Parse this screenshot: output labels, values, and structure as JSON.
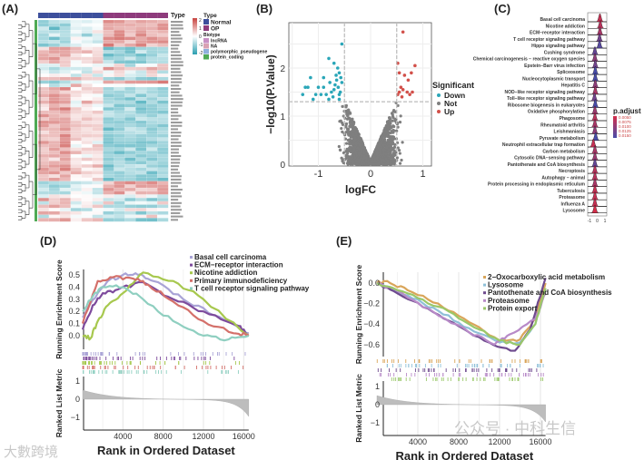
{
  "panels": {
    "a": "(A)",
    "b": "(B)",
    "c": "(C)",
    "d": "(D)",
    "e": "(E)"
  },
  "watermarks": {
    "left": "大數跨境",
    "right": "公众号 · 中科生信"
  },
  "colors": {
    "normal": "#3d4f9c",
    "op": "#8e3b7c",
    "down": "#2aa6b8",
    "not": "#7f7f7f",
    "up": "#d2504a",
    "heat_high": "#c8433f",
    "heat_mid": "#ffffff",
    "heat_low": "#2a9fb0"
  },
  "chart_data": [
    {
      "type": "heatmap",
      "panel": "A",
      "legend": {
        "type_title": "Type",
        "scale_title": "Type",
        "scale_ticks": [
          "2",
          "1",
          "0",
          "-1",
          "-2"
        ],
        "type_items": [
          {
            "label": "Normal",
            "color": "#3d4f9c"
          },
          {
            "label": "OP",
            "color": "#8e3b7c"
          }
        ],
        "biotype_title": "Biotype",
        "biotype_items": [
          {
            "label": "lncRNA",
            "color": "#c78fc4"
          },
          {
            "label": "NA",
            "color": "#d9a1b4"
          },
          {
            "label": "polymorphic_pseudogene",
            "color": "#8fb0dc"
          },
          {
            "label": "protein_coding",
            "color": "#4faa55"
          }
        ]
      },
      "columns": [
        "Normal",
        "Normal",
        "Normal",
        "Normal",
        "Normal",
        "Normal",
        "OP",
        "OP",
        "OP",
        "OP",
        "OP",
        "OP"
      ],
      "row_pattern": [
        1,
        1,
        1,
        1,
        1,
        1,
        1,
        1,
        -1,
        -1,
        -1,
        -1,
        -1,
        0,
        1,
        0,
        0,
        -1,
        1,
        0,
        -1,
        -1,
        -1,
        -1,
        -1,
        -1,
        -1,
        -1,
        -1,
        -1,
        -1,
        -1,
        -1,
        -1,
        -1,
        -1,
        -1,
        -1,
        -1,
        -1,
        -1,
        -1,
        -1,
        -1,
        -1,
        -1,
        -1,
        -1,
        1,
        1,
        1,
        1,
        0,
        -1,
        0,
        -1,
        0,
        -1,
        0,
        -1
      ]
    },
    {
      "type": "scatter",
      "panel": "B",
      "xlabel": "logFC",
      "ylabel": "−log10(P.Value)",
      "xlim": [
        -1.75,
        1.25
      ],
      "ylim": [
        0,
        2.9
      ],
      "xticks": [
        "-1",
        "0",
        "1"
      ],
      "yticks": [
        "0",
        "1",
        "2"
      ],
      "thresholds": {
        "logFC": [
          -0.5,
          0.5
        ],
        "neglog10p": 1.3
      },
      "legend_title": "Significant",
      "legend": [
        "Down",
        "Not",
        "Up"
      ],
      "n_not_points": 2600,
      "down_points": [
        [
          -0.55,
          2.5
        ],
        [
          -0.6,
          1.9
        ],
        [
          -0.7,
          2.1
        ],
        [
          -0.8,
          2.2
        ],
        [
          -0.65,
          1.75
        ],
        [
          -0.9,
          1.8
        ],
        [
          -1.0,
          1.6
        ],
        [
          -1.2,
          1.6
        ],
        [
          -1.25,
          1.6
        ],
        [
          -1.15,
          1.8
        ],
        [
          -0.75,
          1.5
        ],
        [
          -0.85,
          1.45
        ],
        [
          -0.95,
          1.45
        ],
        [
          -1.05,
          1.45
        ],
        [
          -0.6,
          1.35
        ],
        [
          -0.58,
          1.5
        ],
        [
          -0.62,
          1.6
        ],
        [
          -0.68,
          1.65
        ],
        [
          -0.72,
          1.4
        ],
        [
          -1.1,
          1.35
        ],
        [
          -0.8,
          1.35
        ],
        [
          -0.57,
          1.8
        ],
        [
          -0.63,
          2.0
        ],
        [
          -0.7,
          1.55
        ],
        [
          -0.9,
          1.6
        ],
        [
          -1.3,
          1.45
        ],
        [
          -0.6,
          1.45
        ],
        [
          -0.66,
          1.85
        ],
        [
          -0.55,
          1.7
        ],
        [
          -0.78,
          1.7
        ]
      ],
      "up_points": [
        [
          0.62,
          2.75
        ],
        [
          0.52,
          2.1
        ],
        [
          0.55,
          1.9
        ],
        [
          0.65,
          1.85
        ],
        [
          0.78,
          1.9
        ],
        [
          0.85,
          2.05
        ],
        [
          0.72,
          1.75
        ],
        [
          0.58,
          1.6
        ],
        [
          0.62,
          1.55
        ],
        [
          0.55,
          1.5
        ],
        [
          0.7,
          1.5
        ],
        [
          0.8,
          1.5
        ],
        [
          0.75,
          1.45
        ],
        [
          0.52,
          1.45
        ],
        [
          0.6,
          1.4
        ]
      ]
    },
    {
      "type": "ridge",
      "panel": "C",
      "xticks": [
        "-1",
        "0",
        "1"
      ],
      "legend_title": "p.adjust",
      "legend_ticks": [
        "0.0050",
        "0.0075",
        "0.0100",
        "0.0125",
        "0.0150"
      ],
      "pathways": [
        {
          "name": "Basal cell carcinoma",
          "peak": 0.35,
          "padj": 0.006
        },
        {
          "name": "Nicotine addiction",
          "peak": 0.4,
          "padj": 0.007
        },
        {
          "name": "ECM−receptor interaction",
          "peak": 0.35,
          "padj": 0.008
        },
        {
          "name": "T cell receptor signaling pathway",
          "peak": 0.3,
          "padj": 0.012
        },
        {
          "name": "Hippo signaling pathway",
          "peak": 0.3,
          "padj": 0.014
        },
        {
          "name": "Cushing syndrome",
          "peak": -0.3,
          "padj": 0.013
        },
        {
          "name": "Chemical carcinogenesis − reactive oxygen species",
          "peak": -0.3,
          "padj": 0.01
        },
        {
          "name": "Epstein−Barr virus infection",
          "peak": -0.25,
          "padj": 0.012
        },
        {
          "name": "Spliceosome",
          "peak": -0.25,
          "padj": 0.015
        },
        {
          "name": "Nucleocytoplasmic transport",
          "peak": -0.25,
          "padj": 0.015
        },
        {
          "name": "Hepatitis C",
          "peak": -0.25,
          "padj": 0.01
        },
        {
          "name": "NOD−like receptor signaling pathway",
          "peak": -0.25,
          "padj": 0.008
        },
        {
          "name": "Toll−like receptor signaling pathway",
          "peak": -0.35,
          "padj": 0.012
        },
        {
          "name": "Ribosome biogenesis in eukaryotes",
          "peak": -0.25,
          "padj": 0.015
        },
        {
          "name": "Oxidative phosphorylation",
          "peak": -0.3,
          "padj": 0.009
        },
        {
          "name": "Phagosome",
          "peak": -0.3,
          "padj": 0.007
        },
        {
          "name": "Rheumatoid arthritis",
          "peak": -0.3,
          "padj": 0.008
        },
        {
          "name": "Leishmaniasis",
          "peak": -0.3,
          "padj": 0.01
        },
        {
          "name": "Pyruvate metabolism",
          "peak": -0.2,
          "padj": 0.015
        },
        {
          "name": "Neutrophil extracellular trap formation",
          "peak": -0.5,
          "padj": 0.006
        },
        {
          "name": "Carbon metabolism",
          "peak": -0.3,
          "padj": 0.008
        },
        {
          "name": "Cytosolic DNA−sensing pathway",
          "peak": -0.3,
          "padj": 0.009
        },
        {
          "name": "Pantothenate and CoA biosynthesis",
          "peak": -0.3,
          "padj": 0.013
        },
        {
          "name": "Necroptosis",
          "peak": -0.3,
          "padj": 0.007
        },
        {
          "name": "Autophagy − animal",
          "peak": -0.3,
          "padj": 0.007
        },
        {
          "name": "Protein processing in endoplasmic reticulum",
          "peak": -0.3,
          "padj": 0.008
        },
        {
          "name": "Tuberculosis",
          "peak": -0.3,
          "padj": 0.006
        },
        {
          "name": "Proteasome",
          "peak": -0.3,
          "padj": 0.006
        },
        {
          "name": "Influenza A",
          "peak": -0.3,
          "padj": 0.006
        },
        {
          "name": "Lysosome",
          "peak": -0.3,
          "padj": 0.005
        }
      ]
    },
    {
      "type": "line",
      "panel": "D",
      "ylabel_top": "Running Enrichment Score",
      "ylabel_bottom": "Ranked List Metric",
      "xlabel": "Rank in Ordered Dataset",
      "xticks": [
        4000,
        8000,
        12000,
        16000
      ],
      "yticks_top": [
        "0.0",
        "0.1",
        "0.2",
        "0.3",
        "0.4",
        "0.5"
      ],
      "yticks_bottom": [
        "1",
        "0",
        "−1"
      ],
      "xlim": [
        0,
        16500
      ],
      "ylim": [
        -0.1,
        0.55
      ],
      "series": [
        {
          "name": "Basal cell carcinoma",
          "color": "#a9a3d6",
          "points": [
            [
              0,
              0.15
            ],
            [
              1500,
              0.35
            ],
            [
              2500,
              0.45
            ],
            [
              4000,
              0.5
            ],
            [
              5500,
              0.5
            ],
            [
              7000,
              0.45
            ],
            [
              10000,
              0.3
            ],
            [
              13000,
              0.17
            ],
            [
              16500,
              0.02
            ]
          ]
        },
        {
          "name": "ECM−receptor interaction",
          "color": "#7d4a9c",
          "points": [
            [
              0,
              0.05
            ],
            [
              1000,
              0.25
            ],
            [
              2000,
              0.35
            ],
            [
              3500,
              0.38
            ],
            [
              6000,
              0.44
            ],
            [
              9000,
              0.3
            ],
            [
              12000,
              0.2
            ],
            [
              15500,
              0.08
            ],
            [
              16500,
              0.0
            ]
          ]
        },
        {
          "name": "Nicotine addiction",
          "color": "#a7c84e",
          "points": [
            [
              0,
              0.0
            ],
            [
              800,
              -0.02
            ],
            [
              1500,
              0.12
            ],
            [
              2500,
              0.25
            ],
            [
              4000,
              0.35
            ],
            [
              6000,
              0.52
            ],
            [
              9000,
              0.45
            ],
            [
              12000,
              0.3
            ],
            [
              16500,
              0.0
            ]
          ]
        },
        {
          "name": "Primary immunodeficiency",
          "color": "#d4706a",
          "points": [
            [
              0,
              0.1
            ],
            [
              1500,
              0.45
            ],
            [
              3000,
              0.48
            ],
            [
              5000,
              0.47
            ],
            [
              6500,
              0.42
            ],
            [
              9000,
              0.28
            ],
            [
              12000,
              0.12
            ],
            [
              15000,
              0.02
            ],
            [
              16500,
              0.01
            ]
          ]
        },
        {
          "name": "T cell receptor signaling pathway",
          "color": "#8fcfc0",
          "points": [
            [
              0,
              0.2
            ],
            [
              1200,
              0.35
            ],
            [
              2000,
              0.4
            ],
            [
              4000,
              0.4
            ],
            [
              6000,
              0.3
            ],
            [
              9000,
              0.12
            ],
            [
              12000,
              0.0
            ],
            [
              14500,
              -0.03
            ],
            [
              16500,
              0.0
            ]
          ]
        }
      ]
    },
    {
      "type": "line",
      "panel": "E",
      "ylabel_top": "Running Enrichment Score",
      "ylabel_bottom": "Ranked List Metric",
      "xlabel": "Rank in Ordered Dataset",
      "xticks": [
        4000,
        8000,
        12000,
        16000
      ],
      "yticks_top": [
        "0.0",
        "−0.2",
        "−0.4",
        "−0.6"
      ],
      "yticks_bottom": [
        "1",
        "0",
        "−1"
      ],
      "xlim": [
        0,
        16500
      ],
      "ylim": [
        -0.7,
        0.05
      ],
      "series": [
        {
          "name": "2−Oxocarboxylic acid metabolism",
          "color": "#d9a55a",
          "points": [
            [
              0,
              0
            ],
            [
              1000,
              0.02
            ],
            [
              3000,
              -0.07
            ],
            [
              6000,
              -0.2
            ],
            [
              9000,
              -0.38
            ],
            [
              12000,
              -0.56
            ],
            [
              14000,
              -0.55
            ],
            [
              15500,
              -0.35
            ],
            [
              16500,
              0.0
            ]
          ]
        },
        {
          "name": "Lysosome",
          "color": "#8fc0d8",
          "points": [
            [
              0,
              0
            ],
            [
              3000,
              -0.12
            ],
            [
              6000,
              -0.27
            ],
            [
              9000,
              -0.44
            ],
            [
              12000,
              -0.58
            ],
            [
              14000,
              -0.58
            ],
            [
              15500,
              -0.4
            ],
            [
              16500,
              -0.05
            ]
          ]
        },
        {
          "name": "Pantothenate and CoA biosynthesis",
          "color": "#6e4a8e",
          "points": [
            [
              0,
              0
            ],
            [
              2000,
              -0.1
            ],
            [
              5000,
              -0.25
            ],
            [
              8000,
              -0.42
            ],
            [
              11000,
              -0.58
            ],
            [
              13500,
              -0.66
            ],
            [
              15000,
              -0.45
            ],
            [
              16500,
              0.05
            ]
          ]
        },
        {
          "name": "Proteasome",
          "color": "#b88ac8",
          "points": [
            [
              0,
              0
            ],
            [
              2500,
              -0.1
            ],
            [
              5500,
              -0.28
            ],
            [
              9000,
              -0.48
            ],
            [
              11500,
              -0.6
            ],
            [
              13000,
              -0.5
            ],
            [
              15500,
              -0.35
            ],
            [
              16500,
              -0.1
            ]
          ]
        },
        {
          "name": "Protein export",
          "color": "#9ac86a",
          "points": [
            [
              0,
              0
            ],
            [
              3000,
              -0.1
            ],
            [
              6000,
              -0.23
            ],
            [
              9000,
              -0.4
            ],
            [
              12000,
              -0.56
            ],
            [
              14000,
              -0.6
            ],
            [
              15500,
              -0.4
            ],
            [
              16500,
              -0.05
            ]
          ]
        }
      ]
    }
  ]
}
